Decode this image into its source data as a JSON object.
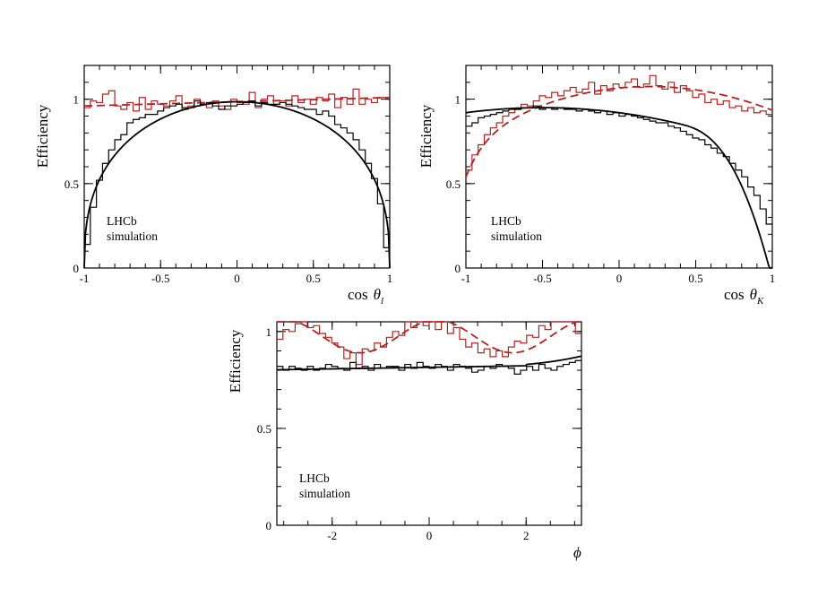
{
  "figure": {
    "label_lines": [
      "LHCb",
      "simulation"
    ],
    "colors": {
      "red": "#b22222",
      "black": "#000000"
    }
  },
  "chart_data": [
    {
      "type": "line",
      "id": "costhetal",
      "title": "",
      "ylabel": "Efficiency",
      "xlabel_text": "cos",
      "xlabel_symbol": "θ",
      "xlabel_sub": "l",
      "xlim": [
        -1,
        1
      ],
      "ylim": [
        0,
        1.2
      ],
      "xticks": [
        -1,
        -0.5,
        0,
        0.5,
        1
      ],
      "xtick_labels": [
        "-1",
        "-0.5",
        "0",
        "0.5",
        "1"
      ],
      "yticks": [
        0,
        0.5,
        1
      ],
      "ytick_labels": [
        "0",
        "0.5",
        "1"
      ],
      "series": [
        {
          "name": "red-histogram",
          "style": "step",
          "color": "#b22222",
          "values": [
            0.95,
            0.99,
            0.98,
            1.03,
            1.05,
            0.96,
            0.94,
            0.98,
            0.93,
            1.01,
            0.94,
            0.99,
            0.97,
            0.96,
            0.99,
            1.02,
            0.94,
            0.96,
            1.0,
            0.97,
            0.95,
            0.99,
            0.96,
            0.94,
            1.0,
            0.98,
            0.97,
            1.04,
            0.95,
            1.0,
            1.02,
            0.97,
            0.99,
            0.96,
            1.02,
            0.98,
            1.0,
            0.97,
            1.01,
            0.99,
            1.03,
            0.95,
            1.01,
            0.97,
            1.06,
            0.97,
            1.0,
            0.98,
            1.01,
            1.01
          ]
        },
        {
          "name": "red-fit",
          "style": "dashed",
          "color": "#b22222",
          "x": [
            -1,
            1
          ],
          "y_formula_points": [
            [
              -1,
              0.96
            ],
            [
              0,
              0.985
            ],
            [
              1,
              1.01
            ]
          ]
        },
        {
          "name": "black-histogram",
          "style": "step",
          "color": "#000000",
          "values": [
            0.14,
            0.36,
            0.52,
            0.62,
            0.7,
            0.76,
            0.79,
            0.86,
            0.88,
            0.89,
            0.91,
            0.91,
            0.93,
            0.95,
            0.96,
            0.97,
            0.95,
            0.95,
            0.99,
            0.97,
            0.98,
            0.96,
            0.94,
            0.96,
            0.96,
            0.97,
            0.98,
            0.99,
            0.96,
            0.98,
            0.97,
            0.97,
            0.98,
            0.97,
            0.96,
            0.95,
            0.94,
            0.94,
            0.91,
            0.93,
            0.9,
            0.85,
            0.83,
            0.8,
            0.76,
            0.7,
            0.62,
            0.53,
            0.38,
            0.12
          ]
        },
        {
          "name": "black-fit",
          "style": "solid",
          "color": "#000000",
          "model": "sqrt1mx2",
          "amp": 0.985,
          "exp": 0.38,
          "slope": 0.0
        }
      ]
    },
    {
      "type": "line",
      "id": "costhetak",
      "title": "",
      "ylabel": "Efficiency",
      "xlabel_text": "cos",
      "xlabel_symbol": "θ",
      "xlabel_sub": "K",
      "xlim": [
        -1,
        1
      ],
      "ylim": [
        0,
        1.2
      ],
      "xticks": [
        -1,
        -0.5,
        0,
        0.5,
        1
      ],
      "xtick_labels": [
        "-1",
        "-0.5",
        "0",
        "0.5",
        "1"
      ],
      "yticks": [
        0,
        0.5,
        1
      ],
      "ytick_labels": [
        "0",
        "0.5",
        "1"
      ],
      "series": [
        {
          "name": "red-histogram",
          "style": "step",
          "color": "#b22222",
          "values": [
            0.58,
            0.67,
            0.73,
            0.79,
            0.83,
            0.86,
            0.9,
            0.92,
            0.94,
            0.97,
            0.96,
            0.99,
            1.02,
            1.01,
            1.04,
            1.02,
            1.05,
            1.07,
            1.04,
            1.06,
            1.1,
            1.03,
            1.08,
            1.05,
            1.09,
            1.07,
            1.1,
            1.12,
            1.07,
            1.09,
            1.14,
            1.08,
            1.06,
            1.1,
            1.04,
            1.08,
            1.05,
            1.01,
            1.03,
            0.98,
            1.0,
            0.97,
            0.99,
            0.95,
            0.96,
            0.93,
            0.95,
            0.92,
            0.93,
            0.91
          ]
        },
        {
          "name": "red-fit",
          "style": "dashed",
          "color": "#b22222",
          "model": "redk"
        },
        {
          "name": "black-histogram",
          "style": "step",
          "color": "#000000",
          "values": [
            0.84,
            0.86,
            0.89,
            0.9,
            0.91,
            0.92,
            0.93,
            0.94,
            0.94,
            0.95,
            0.95,
            0.96,
            0.94,
            0.95,
            0.94,
            0.95,
            0.94,
            0.94,
            0.93,
            0.94,
            0.93,
            0.92,
            0.93,
            0.91,
            0.92,
            0.9,
            0.91,
            0.9,
            0.89,
            0.88,
            0.87,
            0.86,
            0.86,
            0.84,
            0.83,
            0.81,
            0.79,
            0.77,
            0.76,
            0.73,
            0.71,
            0.68,
            0.66,
            0.62,
            0.58,
            0.54,
            0.48,
            0.43,
            0.35,
            0.26
          ]
        },
        {
          "name": "black-fit",
          "style": "solid",
          "color": "#000000",
          "model": "blackk"
        }
      ]
    },
    {
      "type": "line",
      "id": "phi",
      "title": "",
      "ylabel": "Efficiency",
      "xlabel_text": "",
      "xlabel_symbol": "ϕ",
      "xlabel_sub": "",
      "xlim": [
        -3.14159,
        3.14159
      ],
      "ylim": [
        0,
        1.05
      ],
      "xticks": [
        -2,
        0,
        2
      ],
      "xtick_labels": [
        "-2",
        "0",
        "2"
      ],
      "yticks": [
        0,
        0.5,
        1
      ],
      "ytick_labels": [
        "0",
        "0.5",
        "1"
      ],
      "series": [
        {
          "name": "red-histogram",
          "style": "step",
          "color": "#b22222",
          "values": [
            0.96,
            1.01,
            1.0,
            1.04,
            1.06,
            1.02,
            1.03,
            0.99,
            0.97,
            0.94,
            0.92,
            0.86,
            0.89,
            0.83,
            0.91,
            0.9,
            0.94,
            0.92,
            0.97,
            1.0,
            0.98,
            1.05,
            1.02,
            1.1,
            1.03,
            1.06,
            1.01,
            1.05,
            0.99,
            1.02,
            0.96,
            0.92,
            0.94,
            0.89,
            0.91,
            0.87,
            0.9,
            0.87,
            0.92,
            0.95,
            0.94,
            0.98,
            0.97,
            1.03,
            1.01,
            1.07,
            1.12,
            1.06,
            1.1,
            0.99
          ]
        },
        {
          "name": "red-fit",
          "style": "dashed",
          "color": "#b22222",
          "model": "phicos"
        },
        {
          "name": "black-histogram",
          "style": "step",
          "color": "#000000",
          "values": [
            0.82,
            0.8,
            0.82,
            0.81,
            0.8,
            0.82,
            0.8,
            0.81,
            0.83,
            0.82,
            0.81,
            0.8,
            0.84,
            0.81,
            0.82,
            0.8,
            0.83,
            0.81,
            0.82,
            0.82,
            0.8,
            0.83,
            0.81,
            0.84,
            0.82,
            0.81,
            0.83,
            0.82,
            0.8,
            0.83,
            0.82,
            0.81,
            0.79,
            0.8,
            0.82,
            0.81,
            0.83,
            0.82,
            0.81,
            0.78,
            0.8,
            0.82,
            0.8,
            0.83,
            0.81,
            0.8,
            0.82,
            0.83,
            0.84,
            0.85
          ]
        },
        {
          "name": "black-fit",
          "style": "solid",
          "color": "#000000",
          "model": "phiflat"
        }
      ]
    }
  ]
}
